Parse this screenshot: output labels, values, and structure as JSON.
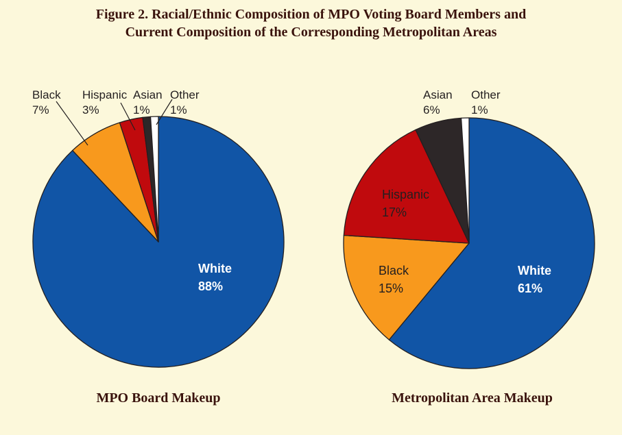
{
  "figure_title": {
    "line1": "Figure 2. Racial/Ethnic Composition of MPO Voting Board Members and",
    "line2": "Current Composition of the Corresponding Metropolitan Areas"
  },
  "colors": {
    "background": "#FCF8DB",
    "heading_text": "#3A130D",
    "label_text": "#231F20",
    "inner_white_label_text": "#FFFFFF",
    "slice_outline": "#231F20",
    "leader_line": "#231F20",
    "slices": {
      "White": "#1155A6",
      "Black": "#F8991D",
      "Hispanic": "#C00A0D",
      "Asian": "#2D2728",
      "Other": "#FFFFFF"
    }
  },
  "chart_data": [
    {
      "type": "pie",
      "title": "MPO Board Makeup",
      "categories": [
        "White",
        "Black",
        "Hispanic",
        "Asian",
        "Other"
      ],
      "values": [
        88,
        7,
        3,
        1,
        1
      ],
      "value_suffix": "%",
      "start_angle_deg": 0,
      "direction": "clockwise",
      "legend_position": "none",
      "label_placement": {
        "White": "inside",
        "Black": "outside-callout",
        "Hispanic": "outside-callout",
        "Asian": "outside",
        "Other": "outside-callout"
      }
    },
    {
      "type": "pie",
      "title": "Metropolitan Area Makeup",
      "categories": [
        "White",
        "Black",
        "Hispanic",
        "Asian",
        "Other"
      ],
      "values": [
        61,
        15,
        17,
        6,
        1
      ],
      "value_suffix": "%",
      "start_angle_deg": 0,
      "direction": "clockwise",
      "legend_position": "none",
      "label_placement": {
        "White": "inside",
        "Black": "inside",
        "Hispanic": "inside",
        "Asian": "outside",
        "Other": "outside"
      }
    }
  ]
}
